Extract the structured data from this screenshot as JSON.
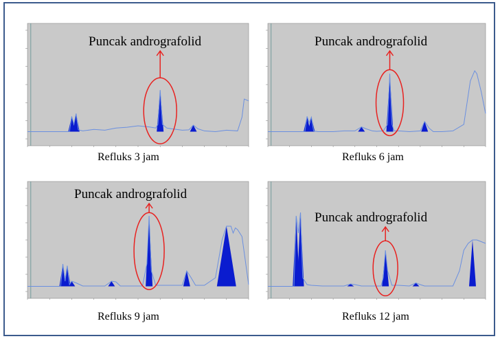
{
  "colors": {
    "plot_bg": "#c9c9c9",
    "trace": "#6a8fe0",
    "peak_fill": "#0a1ccf",
    "annotation": "#e8211f",
    "frame": "#3b5a8c"
  },
  "chart_data": [
    {
      "type": "line",
      "title": "Puncak andrografolid",
      "caption": "Refluks 3 jam",
      "xlim": [
        0,
        10
      ],
      "ylim": [
        0,
        300
      ],
      "x": [
        0.0,
        0.3,
        0.5,
        1.0,
        1.5,
        1.9,
        2.0,
        2.1,
        2.2,
        2.3,
        2.5,
        3.0,
        3.5,
        4.0,
        4.5,
        5.0,
        5.5,
        5.8,
        5.9,
        6.0,
        6.1,
        6.3,
        6.5,
        7.0,
        7.3,
        7.5,
        7.7,
        8.0,
        8.5,
        9.0,
        9.5,
        9.7,
        9.8,
        10.0
      ],
      "y": [
        20,
        20,
        20,
        20,
        20,
        20,
        62,
        40,
        70,
        25,
        22,
        26,
        24,
        30,
        32,
        36,
        33,
        30,
        40,
        135,
        40,
        30,
        28,
        24,
        25,
        38,
        28,
        22,
        20,
        24,
        22,
        60,
        110,
        105
      ],
      "peaks": [
        {
          "label": "andrografolid",
          "x": 6.0,
          "height": 135
        },
        {
          "label": "",
          "x": 2.0,
          "height": 62
        },
        {
          "label": "",
          "x": 2.2,
          "height": 70
        },
        {
          "label": "",
          "x": 7.5,
          "height": 38
        }
      ]
    },
    {
      "type": "line",
      "title": "Puncak andrografolid",
      "caption": "Refluks 6 jam",
      "xlim": [
        0,
        10
      ],
      "ylim": [
        0,
        300
      ],
      "x": [
        0.0,
        0.5,
        1.0,
        1.5,
        1.7,
        1.8,
        1.9,
        2.0,
        2.1,
        2.3,
        2.5,
        3.0,
        3.5,
        4.0,
        4.3,
        4.5,
        4.8,
        5.0,
        5.3,
        5.5,
        5.6,
        5.7,
        5.8,
        6.0,
        6.5,
        7.0,
        7.2,
        7.4,
        7.6,
        8.0,
        8.5,
        9.0,
        9.3,
        9.5,
        9.6,
        9.8,
        10.0
      ],
      "y": [
        20,
        20,
        20,
        20,
        20,
        62,
        45,
        60,
        22,
        20,
        20,
        20,
        22,
        22,
        33,
        28,
        22,
        21,
        22,
        40,
        180,
        40,
        22,
        22,
        20,
        22,
        48,
        30,
        20,
        20,
        22,
        40,
        160,
        188,
        180,
        130,
        70
      ],
      "peaks": [
        {
          "label": "andrografolid",
          "x": 5.6,
          "height": 180
        },
        {
          "label": "",
          "x": 1.8,
          "height": 62
        },
        {
          "label": "",
          "x": 2.0,
          "height": 60
        },
        {
          "label": "",
          "x": 4.3,
          "height": 33
        },
        {
          "label": "",
          "x": 7.2,
          "height": 48
        }
      ]
    },
    {
      "type": "line",
      "title": "Puncak andrografolid",
      "caption": "Refluks 9 jam",
      "xlim": [
        0,
        10
      ],
      "ylim": [
        0,
        300
      ],
      "x": [
        0.0,
        0.5,
        1.0,
        1.5,
        1.6,
        1.7,
        1.8,
        1.9,
        2.0,
        2.2,
        2.5,
        3.0,
        3.5,
        3.8,
        4.0,
        4.2,
        4.5,
        5.0,
        5.2,
        5.4,
        5.5,
        5.6,
        5.8,
        6.0,
        6.5,
        7.0,
        7.2,
        7.4,
        7.6,
        8.0,
        8.5,
        8.8,
        9.0,
        9.2,
        9.3,
        9.4,
        9.5,
        9.7,
        10.0
      ],
      "y": [
        15,
        15,
        15,
        15,
        80,
        30,
        75,
        20,
        30,
        25,
        16,
        16,
        16,
        30,
        28,
        16,
        16,
        16,
        16,
        80,
        220,
        60,
        18,
        18,
        18,
        18,
        60,
        40,
        18,
        18,
        40,
        150,
        190,
        190,
        170,
        185,
        180,
        160,
        20
      ],
      "peaks": [
        {
          "label": "andrografolid",
          "x": 5.5,
          "height": 220
        },
        {
          "label": "",
          "x": 1.6,
          "height": 80
        },
        {
          "label": "",
          "x": 1.8,
          "height": 75
        },
        {
          "label": "",
          "x": 2.0,
          "height": 30
        },
        {
          "label": "",
          "x": 3.8,
          "height": 30
        },
        {
          "label": "",
          "x": 7.2,
          "height": 60
        },
        {
          "label": "",
          "x": 9.0,
          "height": 190
        }
      ]
    },
    {
      "type": "line",
      "title": "Puncak andrografolid",
      "caption": "Refluks 12 jam",
      "xlim": [
        0,
        10
      ],
      "ylim": [
        0,
        300
      ],
      "x": [
        0.0,
        0.5,
        1.0,
        1.2,
        1.3,
        1.4,
        1.5,
        1.6,
        1.8,
        2.0,
        2.5,
        3.0,
        3.5,
        3.8,
        4.0,
        4.3,
        4.5,
        5.0,
        5.2,
        5.3,
        5.4,
        5.5,
        5.7,
        6.0,
        6.5,
        6.8,
        7.0,
        7.2,
        7.5,
        8.0,
        8.5,
        8.8,
        9.0,
        9.2,
        9.4,
        9.6,
        9.8,
        10.0
      ],
      "y": [
        15,
        15,
        15,
        15,
        220,
        170,
        230,
        40,
        20,
        18,
        16,
        16,
        16,
        22,
        20,
        16,
        16,
        16,
        16,
        40,
        120,
        60,
        18,
        18,
        16,
        25,
        20,
        16,
        16,
        16,
        16,
        60,
        120,
        140,
        150,
        150,
        145,
        140
      ],
      "peaks": [
        {
          "label": "andrografolid",
          "x": 5.4,
          "height": 120
        },
        {
          "label": "",
          "x": 1.3,
          "height": 220
        },
        {
          "label": "",
          "x": 1.5,
          "height": 230
        },
        {
          "label": "",
          "x": 3.8,
          "height": 22
        },
        {
          "label": "",
          "x": 6.8,
          "height": 25
        },
        {
          "label": "",
          "x": 9.4,
          "height": 150
        }
      ]
    }
  ]
}
